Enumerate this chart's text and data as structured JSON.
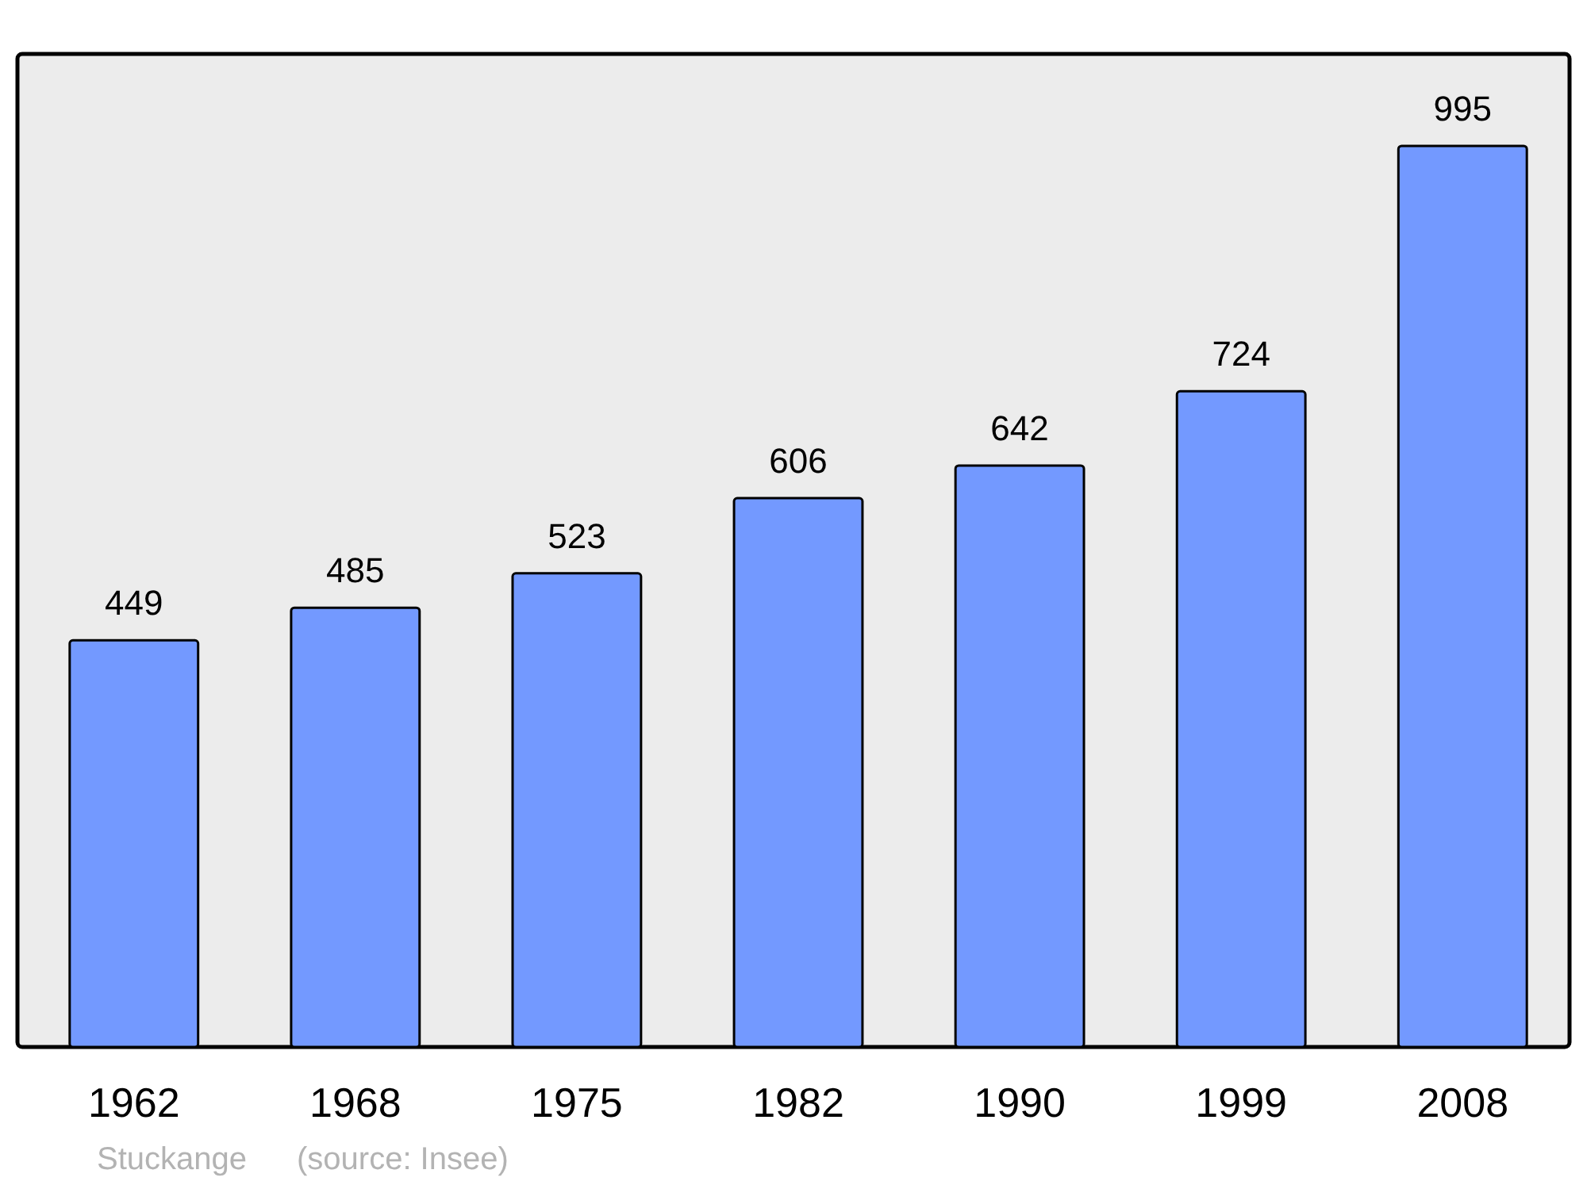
{
  "chart_data": {
    "type": "bar",
    "categories": [
      "1962",
      "1968",
      "1975",
      "1982",
      "1990",
      "1999",
      "2008"
    ],
    "values": [
      449,
      485,
      523,
      606,
      642,
      724,
      995
    ],
    "color": "#7399ff",
    "data_labels": true,
    "annotations": [
      "Stuckange",
      "(source: Insee)"
    ]
  }
}
